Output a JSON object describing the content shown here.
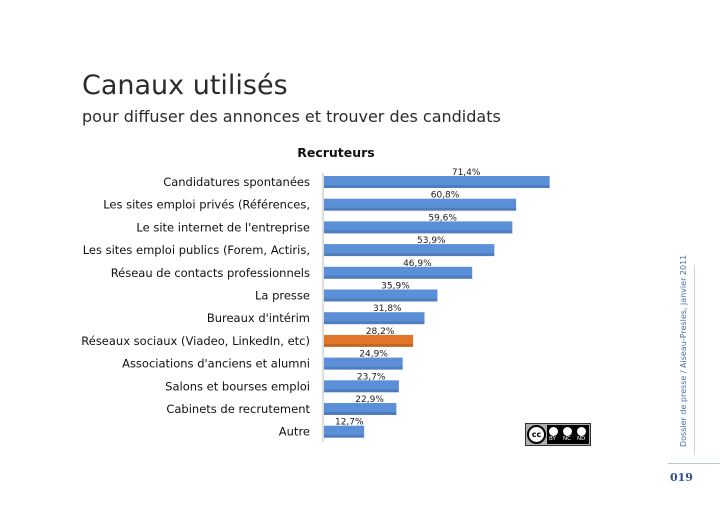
{
  "title": "Canaux utilisés",
  "subtitle": "pour diffuser des annonces et trouver des candidats",
  "side_text": "Dossier de presse / Aiseau-Presles, janvier 2011",
  "page_number": "019",
  "license": {
    "circle": "cc",
    "labels": [
      "BY",
      "NC",
      "ND"
    ]
  },
  "colors": {
    "bar": "#5b8fd8",
    "highlight": "#e0762a",
    "axis": "#bbbbbb"
  },
  "chart_data": {
    "type": "bar",
    "orientation": "horizontal",
    "title": "Recruteurs",
    "xlabel": "",
    "ylabel": "",
    "xlim": [
      0,
      100
    ],
    "unit": "%",
    "categories": [
      "Candidatures spontanées",
      "Les sites emploi privés (Références,",
      "Le site internet de l'entreprise",
      "Les sites emploi publics (Forem, Actiris,",
      "Réseau de contacts professionnels",
      "La presse",
      "Bureaux d'intérim",
      "Réseaux sociaux (Viadeo, LinkedIn, etc)",
      "Associations d'anciens et alumni",
      "Salons et bourses emploi",
      "Cabinets de recrutement",
      "Autre"
    ],
    "values": [
      71.4,
      60.8,
      59.6,
      53.9,
      46.9,
      35.9,
      31.8,
      28.2,
      24.9,
      23.7,
      22.9,
      12.7
    ],
    "value_labels": [
      "71,4%",
      "60,8%",
      "59,6%",
      "53,9%",
      "46,9%",
      "35,9%",
      "31,8%",
      "28,2%",
      "24,9%",
      "23,7%",
      "22,9%",
      "12,7%"
    ],
    "highlight_index": 7
  }
}
